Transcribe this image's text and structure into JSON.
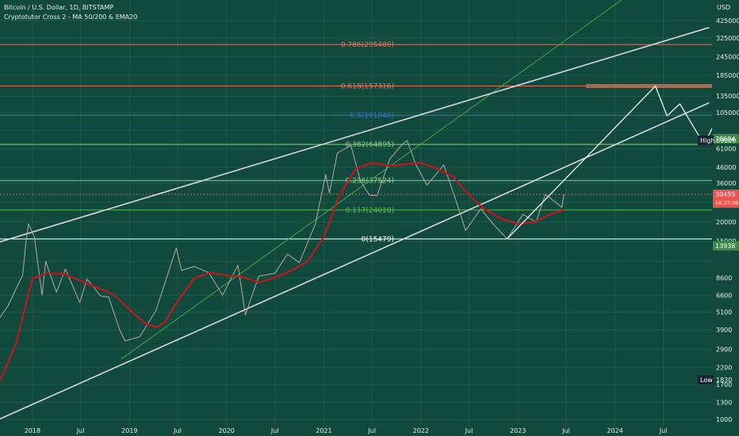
{
  "header": {
    "symbol": "Bitcoin / U.S. Dollar, 1D, BITSTAMP",
    "indicator": "Cryptotutor Cross 2 - MA 50/200 & EMA20"
  },
  "colors": {
    "background": "#114a3d",
    "grid": "#1c5a4b",
    "channel": "#d7d7e6",
    "ma": "#c0171f",
    "candles": "#b7a8a3",
    "projection": "#e4e4ec",
    "fib_0_786": "#e07561",
    "fib_0_618": "#e07561",
    "fib_0_5": "#3b6ee0",
    "fib_0_382": "#8fd08a",
    "fib_0_236": "#8fd08a",
    "fib_0_117": "#5bbb55",
    "fib_0": "#ffffff",
    "trend_green": "#48b048",
    "resistance_zone": "#9b7057",
    "price_badge": "#ef5350",
    "high_low_badge": "#1a2233",
    "green_badge": "#3b8a4b"
  },
  "chart_data": {
    "type": "line",
    "title": "Bitcoin / U.S. Dollar, 1D, BITSTAMP",
    "yscale": "log",
    "ylim": [
      900,
      580000
    ],
    "xlim": [
      "2017-09-01",
      "2024-12-31"
    ],
    "y_unit": "USD",
    "y_ticks": [
      425000,
      325000,
      245000,
      185000,
      135000,
      105000,
      80000,
      61000,
      46000,
      36000,
      27000,
      20000,
      15000,
      11000,
      8600,
      6600,
      5100,
      3900,
      2900,
      2200,
      1700,
      1300,
      1000
    ],
    "y_tick_labels": [
      "425000",
      "325000",
      "245000",
      "185000",
      "135000",
      "105000",
      "",
      "61000",
      "46000",
      "36000",
      "",
      "20000",
      "15000",
      "",
      "8600",
      "6600",
      "5100",
      "3900",
      "2900",
      "2200",
      "1700",
      "1300",
      "1000"
    ],
    "x_ticks": [
      {
        "date": "2018-01-01",
        "label": "2018"
      },
      {
        "date": "2018-07-01",
        "label": "Jul"
      },
      {
        "date": "2019-01-01",
        "label": "2019"
      },
      {
        "date": "2019-07-01",
        "label": "Jul"
      },
      {
        "date": "2020-01-01",
        "label": "2020"
      },
      {
        "date": "2020-07-01",
        "label": "Jul"
      },
      {
        "date": "2021-01-01",
        "label": "2021"
      },
      {
        "date": "2021-07-01",
        "label": "Jul"
      },
      {
        "date": "2022-01-01",
        "label": "2022"
      },
      {
        "date": "2022-07-01",
        "label": "Jul"
      },
      {
        "date": "2023-01-01",
        "label": "2023"
      },
      {
        "date": "2023-07-01",
        "label": "Jul"
      },
      {
        "date": "2024-01-01",
        "label": "2024"
      },
      {
        "date": "2024-07-01",
        "label": "Jul"
      }
    ],
    "fib_levels": [
      {
        "ratio": "0.786",
        "price": 295480,
        "label": "0.786(295480)",
        "color_key": "fib_0_786"
      },
      {
        "ratio": "0.618",
        "price": 157316,
        "label": "0.618(157316)",
        "color_key": "fib_0_618"
      },
      {
        "ratio": "0.5",
        "price": 101040,
        "label": "0.5(101040)",
        "color_key": "fib_0_5"
      },
      {
        "ratio": "0.382",
        "price": 64895,
        "label": "0.382(64895)",
        "color_key": "fib_0_382"
      },
      {
        "ratio": "0.236",
        "price": 37524,
        "label": "0.236(37524)",
        "color_key": "fib_0_236"
      },
      {
        "ratio": "0.117",
        "price": 24010,
        "label": "0.117(24010)",
        "color_key": "fib_0_117"
      },
      {
        "ratio": "0",
        "price": 15479,
        "label": "0(15479)",
        "color_key": "fib_0"
      }
    ],
    "badges": {
      "high_price": "70694",
      "high_price_value": 70694,
      "high_label": "High",
      "high_value": "69000",
      "high_value_num": 69000,
      "current_price": "30455",
      "current_price_value": 30455,
      "countdown": "18:23:06",
      "lower_price": "13938",
      "lower_price_value": 13938,
      "low_label": "Low",
      "low_value": "1830",
      "low_value_num": 1830
    },
    "series": [
      {
        "name": "BTCUSD",
        "kind": "price",
        "points": [
          [
            "2017-09-01",
            4700
          ],
          [
            "2017-10-01",
            5600
          ],
          [
            "2017-11-01",
            7300
          ],
          [
            "2017-11-25",
            8900
          ],
          [
            "2017-12-08",
            15000
          ],
          [
            "2017-12-17",
            19500
          ],
          [
            "2018-01-08",
            16000
          ],
          [
            "2018-02-06",
            6600
          ],
          [
            "2018-02-20",
            11000
          ],
          [
            "2018-04-01",
            6900
          ],
          [
            "2018-05-05",
            9800
          ],
          [
            "2018-06-28",
            5900
          ],
          [
            "2018-07-25",
            8400
          ],
          [
            "2018-09-15",
            6500
          ],
          [
            "2018-10-15",
            6400
          ],
          [
            "2018-11-25",
            3900
          ],
          [
            "2018-12-15",
            3300
          ],
          [
            "2019-02-08",
            3500
          ],
          [
            "2019-04-10",
            5200
          ],
          [
            "2019-05-15",
            8000
          ],
          [
            "2019-06-26",
            13500
          ],
          [
            "2019-07-16",
            9600
          ],
          [
            "2019-09-01",
            10200
          ],
          [
            "2019-10-26",
            9300
          ],
          [
            "2019-12-17",
            6600
          ],
          [
            "2020-02-13",
            10400
          ],
          [
            "2020-03-12",
            4900
          ],
          [
            "2020-05-01",
            8800
          ],
          [
            "2020-07-01",
            9200
          ],
          [
            "2020-08-17",
            12300
          ],
          [
            "2020-10-01",
            10800
          ],
          [
            "2020-11-30",
            19400
          ],
          [
            "2021-01-08",
            41000
          ],
          [
            "2021-01-22",
            31000
          ],
          [
            "2021-02-21",
            57000
          ],
          [
            "2021-04-13",
            64000
          ],
          [
            "2021-05-19",
            37000
          ],
          [
            "2021-06-22",
            30000
          ],
          [
            "2021-07-20",
            29800
          ],
          [
            "2021-09-06",
            52000
          ],
          [
            "2021-10-20",
            64000
          ],
          [
            "2021-11-10",
            69000
          ],
          [
            "2021-12-15",
            47000
          ],
          [
            "2022-01-24",
            35000
          ],
          [
            "2022-03-28",
            47500
          ],
          [
            "2022-05-12",
            28000
          ],
          [
            "2022-06-18",
            17600
          ],
          [
            "2022-08-14",
            24400
          ],
          [
            "2022-10-01",
            19300
          ],
          [
            "2022-11-21",
            15479
          ],
          [
            "2023-01-20",
            22500
          ],
          [
            "2023-03-10",
            20000
          ],
          [
            "2023-04-14",
            30500
          ],
          [
            "2023-06-15",
            25000
          ],
          [
            "2023-06-23",
            30455
          ]
        ]
      },
      {
        "name": "MA",
        "kind": "ma",
        "points": [
          [
            "2017-09-01",
            1800
          ],
          [
            "2017-11-01",
            3200
          ],
          [
            "2017-12-01",
            5200
          ],
          [
            "2018-01-01",
            8500
          ],
          [
            "2018-03-01",
            9200
          ],
          [
            "2018-05-01",
            9100
          ],
          [
            "2018-07-01",
            8200
          ],
          [
            "2018-09-01",
            7400
          ],
          [
            "2018-11-01",
            6700
          ],
          [
            "2019-01-01",
            5300
          ],
          [
            "2019-03-01",
            4300
          ],
          [
            "2019-04-15",
            4050
          ],
          [
            "2019-05-15",
            4400
          ],
          [
            "2019-07-01",
            6000
          ],
          [
            "2019-09-01",
            8500
          ],
          [
            "2019-11-01",
            9300
          ],
          [
            "2020-01-01",
            8900
          ],
          [
            "2020-03-01",
            8700
          ],
          [
            "2020-05-01",
            8000
          ],
          [
            "2020-07-01",
            8600
          ],
          [
            "2020-09-01",
            9600
          ],
          [
            "2020-11-01",
            11000
          ],
          [
            "2021-01-01",
            16000
          ],
          [
            "2021-03-01",
            30000
          ],
          [
            "2021-05-01",
            45000
          ],
          [
            "2021-07-01",
            49000
          ],
          [
            "2021-09-01",
            47000
          ],
          [
            "2021-11-01",
            48000
          ],
          [
            "2022-01-01",
            49000
          ],
          [
            "2022-03-01",
            45000
          ],
          [
            "2022-05-01",
            40000
          ],
          [
            "2022-07-01",
            30000
          ],
          [
            "2022-09-01",
            24000
          ],
          [
            "2022-11-01",
            21000
          ],
          [
            "2023-01-01",
            19500
          ],
          [
            "2023-03-01",
            20000
          ],
          [
            "2023-05-01",
            22500
          ],
          [
            "2023-06-23",
            24000
          ]
        ]
      },
      {
        "name": "Upper channel",
        "kind": "channel",
        "points": [
          [
            "2017-09-01",
            14800
          ],
          [
            "2024-12-20",
            382000
          ]
        ]
      },
      {
        "name": "Lower channel",
        "kind": "channel",
        "points": [
          [
            "2017-09-01",
            1010
          ],
          [
            "2024-12-20",
            122000
          ]
        ]
      },
      {
        "name": "Green trend",
        "kind": "trend",
        "points": [
          [
            "2018-12-01",
            2500
          ],
          [
            "2024-08-01",
            1000000
          ]
        ]
      },
      {
        "name": "Projection",
        "kind": "projection",
        "points": [
          [
            "2022-11-21",
            15479
          ],
          [
            "2024-06-01",
            157316
          ],
          [
            "2024-07-15",
            100000
          ],
          [
            "2024-09-01",
            120000
          ],
          [
            "2024-12-01",
            64895
          ],
          [
            "2025-06-01",
            280000
          ]
        ]
      }
    ],
    "annotations": [
      {
        "type": "zone",
        "from": "2023-09-15",
        "to": "2027-01-01",
        "price": 157316
      }
    ]
  }
}
